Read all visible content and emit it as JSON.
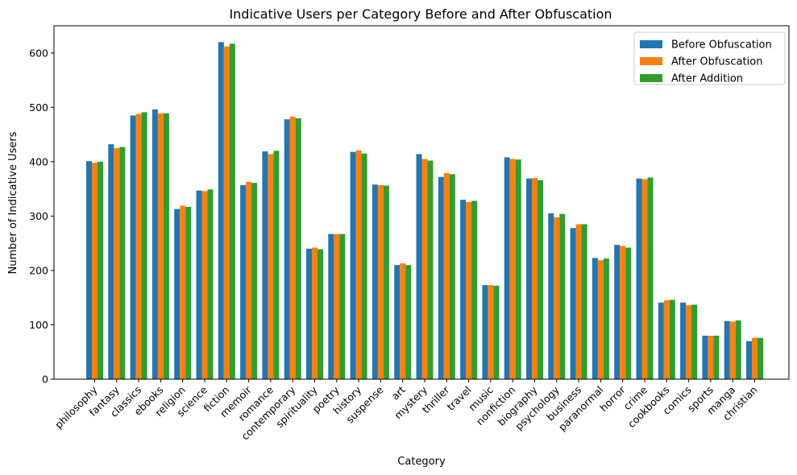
{
  "chart_data": {
    "type": "bar",
    "title": "Indicative Users per Category Before and After Obfuscation",
    "xlabel": "Category",
    "ylabel": "Number of Indicative Users",
    "ylim": [
      0,
      650
    ],
    "yticks": [
      0,
      100,
      200,
      300,
      400,
      500,
      600
    ],
    "grid": false,
    "legend_position": "top-right",
    "categories": [
      "philosophy",
      "fantasy",
      "classics",
      "ebooks",
      "religion",
      "science",
      "fiction",
      "memoir",
      "romance",
      "contemporary",
      "spirituality",
      "poetry",
      "history",
      "suspense",
      "art",
      "mystery",
      "thriller",
      "travel",
      "music",
      "nonfiction",
      "biography",
      "psychology",
      "business",
      "paranormal",
      "horror",
      "crime",
      "cookbooks",
      "comics",
      "sports",
      "manga",
      "christian"
    ],
    "series": [
      {
        "name": "Before Obfuscation",
        "color": "#1f77b4",
        "values": [
          401,
          432,
          485,
          496,
          313,
          347,
          620,
          357,
          419,
          478,
          240,
          267,
          418,
          358,
          210,
          414,
          372,
          330,
          173,
          408,
          369,
          305,
          278,
          223,
          247,
          369,
          141,
          141,
          80,
          107,
          70
        ]
      },
      {
        "name": "After Obfuscation",
        "color": "#ff7f0e",
        "values": [
          398,
          425,
          488,
          489,
          319,
          346,
          612,
          363,
          414,
          483,
          242,
          267,
          421,
          357,
          213,
          405,
          379,
          326,
          173,
          405,
          370,
          298,
          285,
          219,
          245,
          368,
          145,
          136,
          80,
          106,
          76
        ]
      },
      {
        "name": "After Addition",
        "color": "#2ca02c",
        "values": [
          400,
          427,
          491,
          489,
          317,
          349,
          617,
          361,
          420,
          480,
          239,
          267,
          415,
          356,
          210,
          402,
          377,
          328,
          172,
          404,
          366,
          304,
          285,
          222,
          242,
          371,
          146,
          137,
          80,
          108,
          76
        ]
      }
    ]
  }
}
